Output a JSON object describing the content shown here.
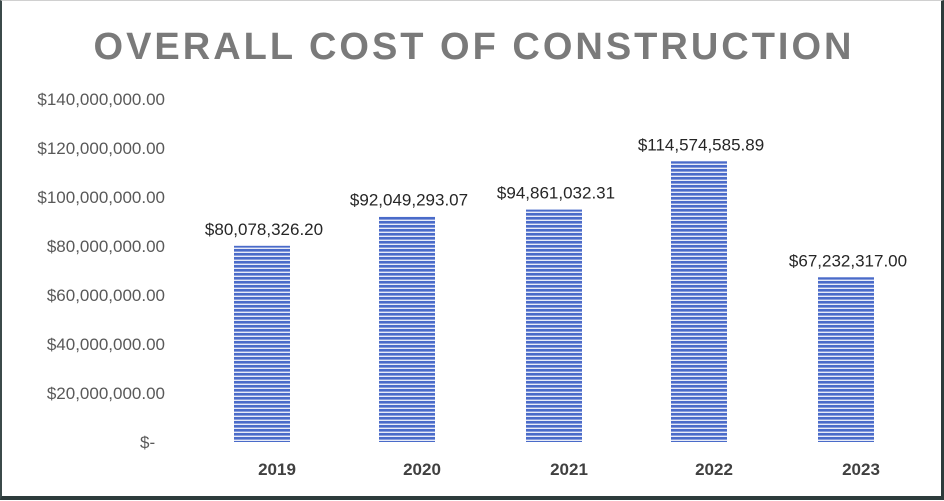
{
  "chart_data": {
    "type": "bar",
    "title": "OVERALL COST OF CONSTRUCTION",
    "categories": [
      "2019",
      "2020",
      "2021",
      "2022",
      "2023"
    ],
    "values": [
      80078326.2,
      92049293.07,
      94861032.31,
      114574585.89,
      67232317.0
    ],
    "data_labels": [
      "$80,078,326.20",
      "$92,049,293.07",
      "$94,861,032.31",
      "$114,574,585.89",
      "$67,232,317.00"
    ],
    "ylim": [
      0,
      140000000
    ],
    "y_ticks": [
      0,
      20000000,
      40000000,
      60000000,
      80000000,
      100000000,
      120000000,
      140000000
    ],
    "y_tick_labels": [
      "$-",
      "$20,000,000.00",
      "$40,000,000.00",
      "$60,000,000.00",
      "$80,000,000.00",
      "$100,000,000.00",
      "$120,000,000.00",
      "$140,000,000.00"
    ],
    "xlabel": "",
    "ylabel": "",
    "grid": false,
    "legend": "none",
    "bar_color": "#4a6bc9",
    "bar_stripe_color": "#e8ecf8"
  }
}
